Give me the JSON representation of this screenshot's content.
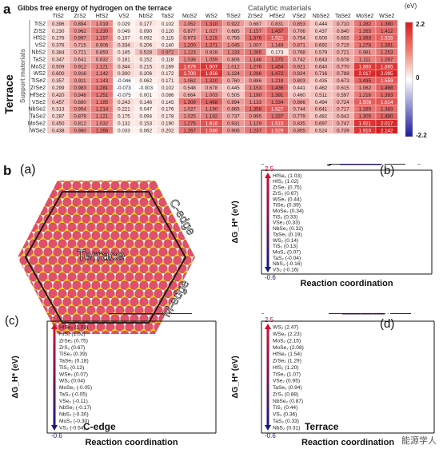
{
  "panel_a": {
    "letter": "a",
    "title": "Gibbs free energy of hydrogen on the terrace",
    "catalytic_label": "Catalytic materials",
    "support_label": "Support materials",
    "terrace_label": "Terrace",
    "unit": "(eV)",
    "scale_max": "2.2",
    "scale_mid": "0",
    "scale_min": "-2.2",
    "columns": [
      "TiS2",
      "ZrS2",
      "HfS2",
      "VS2",
      "NbS2",
      "TaS2",
      "MoS2",
      "WS2",
      "TiSe2",
      "ZrSe2",
      "HfSe2",
      "VSe2",
      "NbSe2",
      "TaSe2",
      "MoSe2",
      "WSe2"
    ],
    "rows": [
      "TiS2",
      "ZrS2",
      "HfS2",
      "VS2",
      "NbS2",
      "TaS2",
      "MoS2",
      "WS2",
      "TiSe2",
      "ZrSe2",
      "HfSe2",
      "VSe2",
      "NbSe2",
      "TaSe2",
      "MoSe2",
      "WSe2"
    ],
    "values": [
      [
        "0.396",
        "0.894",
        "1.019",
        "0.029",
        "0.177",
        "0.102",
        "1.052",
        "1.310",
        "0.922",
        "0.687",
        "0.831",
        "0.853",
        "0.444",
        "0.710",
        "1.282",
        "1.390"
      ],
      [
        "0.230",
        "0.962",
        "1.230",
        "0.049",
        "0.090",
        "0.120",
        "0.877",
        "1.027",
        "0.685",
        "1.157",
        "1.437",
        "0.706",
        "0.437",
        "0.640",
        "1.265",
        "1.412"
      ],
      [
        "0.276",
        "0.997",
        "1.157",
        "0.107",
        "0.092",
        "0.115",
        "0.973",
        "1.215",
        "0.755",
        "1.376",
        "1.521",
        "0.754",
        "0.500",
        "0.655",
        "1.393",
        "1.515"
      ],
      [
        "0.376",
        "0.715",
        "0.906",
        "0.334",
        "0.206",
        "0.140",
        "1.200",
        "1.271",
        "1.045",
        "1.007",
        "1.149",
        "0.871",
        "0.692",
        "0.715",
        "1.278",
        "1.391"
      ],
      [
        "0.384",
        "0.721",
        "0.850",
        "0.185",
        "0.528",
        "0.972",
        "1.123",
        "0.928",
        "1.133",
        "1.265",
        "0.173",
        "0.768",
        "0.579",
        "0.721",
        "0.981",
        "1.253"
      ],
      [
        "0.347",
        "0.641",
        "0.832",
        "0.181",
        "0.152",
        "0.118",
        "1.038",
        "1.059",
        "0.806",
        "1.148",
        "1.270",
        "0.742",
        "0.643",
        "0.678",
        "1.111",
        "1.267"
      ],
      [
        "0.509",
        "0.912",
        "1.121",
        "0.344",
        "0.215",
        "0.169",
        "1.679",
        "1.907",
        "1.012",
        "1.276",
        "1.454",
        "0.921",
        "0.640",
        "0.770",
        "1.860",
        "1.865"
      ],
      [
        "0.600",
        "0.916",
        "1.142",
        "0.300",
        "0.206",
        "0.172",
        "1.700",
        "1.956",
        "1.124",
        "1.286",
        "1.472",
        "0.924",
        "0.716",
        "0.788",
        "2.017",
        "2.095"
      ],
      [
        "0.357",
        "0.911",
        "1.143",
        "-0.046",
        "0.062",
        "0.171",
        "1.062",
        "1.310",
        "0.760",
        "0.886",
        "1.218",
        "0.803",
        "0.435",
        "0.673",
        "1.435",
        "1.559"
      ],
      [
        "0.299",
        "0.983",
        "1.281",
        "-0.073",
        "-0.003",
        "0.102",
        "0.548",
        "0.678",
        "0.445",
        "1.153",
        "1.436",
        "0.441",
        "0.462",
        "0.615",
        "1.062",
        "1.468"
      ],
      [
        "0.420",
        "0.948",
        "1.251",
        "-0.075",
        "0.001",
        "0.086",
        "0.664",
        "1.003",
        "0.505",
        "1.190",
        "1.391",
        "0.460",
        "0.511",
        "0.597",
        "1.216",
        "1.393"
      ],
      [
        "0.457",
        "0.880",
        "1.185",
        "0.243",
        "0.146",
        "0.145",
        "1.309",
        "1.468",
        "0.894",
        "1.133",
        "1.334",
        "0.866",
        "0.494",
        "0.724",
        "1.508",
        "1.614"
      ],
      [
        "0.313",
        "0.954",
        "1.214",
        "0.221",
        "0.047",
        "0.176",
        "1.027",
        "1.190",
        "0.865",
        "1.358",
        "1.527",
        "0.744",
        "0.641",
        "0.717",
        "1.289",
        "1.383"
      ],
      [
        "0.287",
        "0.879",
        "1.121",
        "0.175",
        "0.094",
        "0.178",
        "1.025",
        "1.192",
        "0.737",
        "0.995",
        "1.337",
        "0.779",
        "0.482",
        "0.642",
        "1.305",
        "1.480"
      ],
      [
        "0.450",
        "0.812",
        "1.032",
        "0.132",
        "0.153",
        "0.190",
        "1.275",
        "1.616",
        "0.931",
        "1.129",
        "1.515",
        "0.835",
        "0.697",
        "0.747",
        "1.921",
        "2.017"
      ],
      [
        "0.438",
        "0.980",
        "1.266",
        "0.033",
        "0.062",
        "0.202",
        "1.267",
        "1.586",
        "0.906",
        "1.237",
        "1.529",
        "0.855",
        "0.524",
        "0.739",
        "1.910",
        "2.142"
      ]
    ]
  },
  "panel_b": {
    "letter": "b",
    "sub_a": "(a)",
    "terrace_label": "Terrace",
    "c_edge_label": "C-edge",
    "m_edge_label": "M-edge"
  },
  "chart_data": [
    {
      "type": "line",
      "panel": "(b)",
      "title": "M-edge",
      "xlabel": "Reaction coordination",
      "ylabel": "ΔG_H* (eV)",
      "ylim": [
        -0.6,
        1.15
      ],
      "yticks": [
        "1.00",
        "0.75",
        "0.50",
        "0.25",
        "0.00",
        "-0.25",
        "-0.50"
      ],
      "scale_top": "2.5",
      "scale_bottom": "-0.6",
      "left_state": "H⁺ + e⁻",
      "right_state": "1/2 H₂",
      "top_label": "HfSe₂",
      "bottom_labels": [
        "MoS₂",
        "NbS₂",
        "VS₂"
      ],
      "legend_items": [
        "HfSe₂ (1.03)",
        "HfS₂ (1.02)",
        "ZrSe₂ (0.75)",
        "ZrS₂ (0.67)",
        "WSe₂ (0.44)",
        "TiSe₂ (0.39)",
        "MoSe₂ (0.34)",
        "TiS₂ (0.33)",
        "VSe₂ (0.33)",
        "NbSe₂ (0.32)",
        "TaSe₂ (0.19)",
        "WS₂ (0.14)",
        "TiS₂ (0.13)",
        "MoS₂ (0.07)",
        "TaS₂ (-0.04)",
        "NbS₂ (-0.16)",
        "VS₂ (-0.16)"
      ],
      "values": [
        1.03,
        1.02,
        0.75,
        0.67,
        0.44,
        0.39,
        0.34,
        0.33,
        0.33,
        0.32,
        0.19,
        0.14,
        0.13,
        0.07,
        -0.04,
        -0.16,
        -0.16
      ]
    },
    {
      "type": "line",
      "panel": "(c)",
      "title": "C-edge",
      "xlabel": "Reaction coordination",
      "ylabel": "ΔG_H* (eV)",
      "ylim": [
        -0.6,
        1.1
      ],
      "yticks": [
        "1.00",
        "0.75",
        "0.50",
        "0.25",
        "0.00",
        "-0.25",
        "-0.50"
      ],
      "scale_top": "2.5",
      "scale_bottom": "-0.6",
      "top_label": "HfSe₂",
      "bottom_label": "VS₂",
      "legend_items": [
        "HfSe₂ (1.03)",
        "HfS₂ (1.02)",
        "ZrSe₂ (0.75)",
        "ZrS₂ (0.67)",
        "TiSe₂ (0.39)",
        "TaSe₂ (0.18)",
        "TiS₂ (0.13)",
        "WSe₂ (0.07)",
        "WS₂ (0.04)",
        "MoSe₂ (-0.05)",
        "TaS₂ (-0.05)",
        "VSe₂ (-0.11)",
        "NbSe₂ (-0.17)",
        "NbS₂ (-0.30)",
        "MoS₂ (-0.30)",
        "VS₂ (-0.54)"
      ],
      "values": [
        1.03,
        1.02,
        0.75,
        0.67,
        0.39,
        0.18,
        0.13,
        0.07,
        0.04,
        -0.05,
        -0.05,
        -0.11,
        -0.17,
        -0.3,
        -0.3,
        -0.54
      ]
    },
    {
      "type": "line",
      "panel": "(d)",
      "title": "Terrace",
      "xlabel": "Reaction coordination",
      "ylabel": "ΔG_H* (eV)",
      "ylim": [
        -0.1,
        2.55
      ],
      "yticks": [
        "2.5",
        "2.0",
        "1.5",
        "1.0",
        "0.5",
        "0.0"
      ],
      "scale_top": "2.5",
      "scale_bottom": "-0.6",
      "top_label": "WS₂",
      "mid_label": "NbSe₂",
      "bottom_label": "Pt(111)",
      "legend_items": [
        "WS₂ (2.47)",
        "WSe₂ (2.23)",
        "MoS₂ (2.15)",
        "MoSe₂ (2.08)",
        "HfSe₂ (1.54)",
        "ZrSe₂ (1.29)",
        "HfS₂ (1.20)",
        "TiSe₂ (1.07)",
        "VSe₂ (0.95)",
        "TaSe₂ (0.94)",
        "ZrS₂ (0.88)",
        "NbSe₂ (0.87)",
        "TiS₂ (0.44)",
        "VS₂ (0.36)",
        "TaS₂ (0.33)",
        "NbS₂ (0.31)"
      ],
      "values": [
        2.47,
        2.23,
        2.15,
        2.08,
        1.54,
        1.29,
        1.2,
        1.07,
        0.95,
        0.94,
        0.88,
        0.87,
        0.44,
        0.36,
        0.33,
        0.31
      ]
    }
  ],
  "watermark": "能源学人"
}
